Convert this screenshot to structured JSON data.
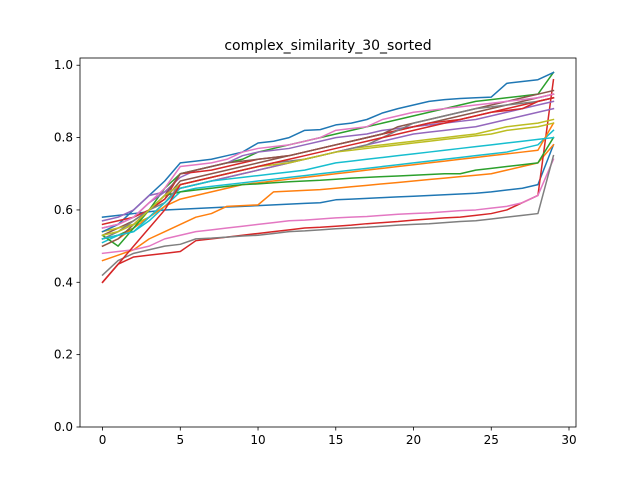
{
  "chart_data": {
    "type": "line",
    "title": "complex_similarity_30_sorted",
    "xlabel": "",
    "ylabel": "",
    "xlim": [
      -1.45,
      30.45
    ],
    "ylim": [
      0.0,
      1.02
    ],
    "x_ticks": [
      0,
      5,
      10,
      15,
      20,
      25,
      30
    ],
    "y_ticks": [
      0.0,
      0.2,
      0.4,
      0.6,
      0.8,
      1.0
    ],
    "x_tick_labels": [
      "0",
      "5",
      "10",
      "15",
      "20",
      "25",
      "30"
    ],
    "y_tick_labels": [
      "0.0",
      "0.2",
      "0.4",
      "0.6",
      "0.8",
      "1.0"
    ],
    "grid": false,
    "legend": "none",
    "x": [
      0,
      1,
      2,
      3,
      4,
      5,
      6,
      7,
      8,
      9,
      10,
      11,
      12,
      13,
      14,
      15,
      16,
      17,
      18,
      19,
      20,
      21,
      22,
      23,
      24,
      25,
      26,
      27,
      28,
      29
    ],
    "series": [
      {
        "color": "#1f77b4",
        "values": [
          0.58,
          0.585,
          0.59,
          0.595,
          0.6,
          0.602,
          0.604,
          0.606,
          0.608,
          0.61,
          0.612,
          0.614,
          0.616,
          0.618,
          0.62,
          0.628,
          0.63,
          0.632,
          0.634,
          0.636,
          0.638,
          0.64,
          0.642,
          0.644,
          0.646,
          0.65,
          0.655,
          0.66,
          0.67,
          0.78
        ]
      },
      {
        "color": "#ff7f0e",
        "values": [
          0.46,
          0.475,
          0.49,
          0.52,
          0.54,
          0.56,
          0.58,
          0.59,
          0.61,
          0.612,
          0.614,
          0.65,
          0.652,
          0.654,
          0.656,
          0.66,
          0.664,
          0.668,
          0.672,
          0.676,
          0.68,
          0.684,
          0.688,
          0.692,
          0.696,
          0.7,
          0.71,
          0.72,
          0.73,
          0.78
        ]
      },
      {
        "color": "#2ca02c",
        "values": [
          0.52,
          0.53,
          0.55,
          0.6,
          0.66,
          0.7,
          0.71,
          0.72,
          0.73,
          0.74,
          0.76,
          0.77,
          0.78,
          0.79,
          0.8,
          0.81,
          0.82,
          0.83,
          0.84,
          0.85,
          0.86,
          0.87,
          0.88,
          0.89,
          0.9,
          0.905,
          0.91,
          0.915,
          0.92,
          0.98
        ]
      },
      {
        "color": "#d62728",
        "values": [
          0.4,
          0.45,
          0.47,
          0.475,
          0.48,
          0.485,
          0.515,
          0.52,
          0.525,
          0.53,
          0.535,
          0.54,
          0.545,
          0.55,
          0.552,
          0.555,
          0.558,
          0.562,
          0.565,
          0.568,
          0.572,
          0.575,
          0.578,
          0.58,
          0.585,
          0.59,
          0.6,
          0.62,
          0.64,
          0.96
        ]
      },
      {
        "color": "#9467bd",
        "values": [
          0.55,
          0.56,
          0.58,
          0.62,
          0.65,
          0.69,
          0.71,
          0.72,
          0.73,
          0.75,
          0.76,
          0.765,
          0.77,
          0.78,
          0.79,
          0.8,
          0.805,
          0.81,
          0.82,
          0.825,
          0.83,
          0.835,
          0.84,
          0.845,
          0.85,
          0.86,
          0.87,
          0.88,
          0.89,
          0.9
        ]
      },
      {
        "color": "#8c564b",
        "values": [
          0.53,
          0.55,
          0.57,
          0.6,
          0.63,
          0.68,
          0.69,
          0.7,
          0.71,
          0.72,
          0.73,
          0.74,
          0.75,
          0.76,
          0.77,
          0.78,
          0.79,
          0.8,
          0.81,
          0.82,
          0.83,
          0.84,
          0.85,
          0.86,
          0.87,
          0.88,
          0.89,
          0.9,
          0.91,
          0.92
        ]
      },
      {
        "color": "#e377c2",
        "values": [
          0.48,
          0.485,
          0.49,
          0.5,
          0.52,
          0.53,
          0.54,
          0.545,
          0.55,
          0.555,
          0.56,
          0.565,
          0.57,
          0.572,
          0.575,
          0.578,
          0.58,
          0.582,
          0.585,
          0.588,
          0.59,
          0.592,
          0.595,
          0.598,
          0.6,
          0.605,
          0.61,
          0.62,
          0.64,
          0.74
        ]
      },
      {
        "color": "#7f7f7f",
        "values": [
          0.42,
          0.46,
          0.48,
          0.49,
          0.5,
          0.505,
          0.52,
          0.522,
          0.525,
          0.528,
          0.53,
          0.535,
          0.54,
          0.542,
          0.545,
          0.548,
          0.55,
          0.552,
          0.555,
          0.558,
          0.56,
          0.562,
          0.565,
          0.568,
          0.57,
          0.575,
          0.58,
          0.585,
          0.59,
          0.75
        ]
      },
      {
        "color": "#bcbd22",
        "values": [
          0.54,
          0.55,
          0.56,
          0.58,
          0.62,
          0.66,
          0.67,
          0.68,
          0.69,
          0.7,
          0.71,
          0.72,
          0.73,
          0.74,
          0.75,
          0.76,
          0.77,
          0.775,
          0.78,
          0.785,
          0.79,
          0.795,
          0.8,
          0.805,
          0.81,
          0.82,
          0.83,
          0.835,
          0.84,
          0.85
        ]
      },
      {
        "color": "#17becf",
        "values": [
          0.51,
          0.53,
          0.54,
          0.57,
          0.61,
          0.65,
          0.66,
          0.665,
          0.67,
          0.675,
          0.68,
          0.685,
          0.69,
          0.695,
          0.7,
          0.705,
          0.71,
          0.715,
          0.72,
          0.725,
          0.73,
          0.735,
          0.74,
          0.745,
          0.75,
          0.755,
          0.76,
          0.77,
          0.78,
          0.82
        ]
      },
      {
        "color": "#1f77b4",
        "values": [
          0.54,
          0.56,
          0.6,
          0.64,
          0.68,
          0.73,
          0.735,
          0.74,
          0.75,
          0.76,
          0.785,
          0.79,
          0.8,
          0.82,
          0.822,
          0.835,
          0.84,
          0.85,
          0.868,
          0.88,
          0.89,
          0.9,
          0.905,
          0.908,
          0.91,
          0.912,
          0.95,
          0.955,
          0.96,
          0.98
        ]
      },
      {
        "color": "#ff7f0e",
        "values": [
          0.5,
          0.52,
          0.55,
          0.58,
          0.61,
          0.63,
          0.64,
          0.65,
          0.66,
          0.67,
          0.675,
          0.68,
          0.685,
          0.69,
          0.695,
          0.7,
          0.705,
          0.71,
          0.715,
          0.72,
          0.725,
          0.73,
          0.735,
          0.74,
          0.745,
          0.75,
          0.755,
          0.76,
          0.765,
          0.84
        ]
      },
      {
        "color": "#2ca02c",
        "values": [
          0.53,
          0.5,
          0.55,
          0.6,
          0.64,
          0.65,
          0.655,
          0.66,
          0.665,
          0.67,
          0.672,
          0.675,
          0.678,
          0.68,
          0.682,
          0.685,
          0.688,
          0.69,
          0.692,
          0.694,
          0.696,
          0.698,
          0.7,
          0.7,
          0.71,
          0.715,
          0.72,
          0.725,
          0.73,
          0.8
        ]
      },
      {
        "color": "#d62728",
        "values": [
          0.56,
          0.57,
          0.58,
          0.6,
          0.63,
          0.7,
          0.705,
          0.71,
          0.72,
          0.73,
          0.74,
          0.745,
          0.75,
          0.76,
          0.77,
          0.78,
          0.79,
          0.8,
          0.81,
          0.82,
          0.83,
          0.84,
          0.845,
          0.85,
          0.86,
          0.87,
          0.88,
          0.89,
          0.9,
          0.91
        ]
      },
      {
        "color": "#9467bd",
        "values": [
          0.57,
          0.58,
          0.6,
          0.64,
          0.65,
          0.66,
          0.67,
          0.68,
          0.69,
          0.7,
          0.71,
          0.72,
          0.73,
          0.74,
          0.75,
          0.76,
          0.77,
          0.78,
          0.79,
          0.8,
          0.81,
          0.815,
          0.82,
          0.825,
          0.83,
          0.84,
          0.85,
          0.86,
          0.87,
          0.88
        ]
      },
      {
        "color": "#8c564b",
        "values": [
          0.5,
          0.52,
          0.56,
          0.6,
          0.64,
          0.7,
          0.71,
          0.72,
          0.73,
          0.735,
          0.74,
          0.745,
          0.75,
          0.76,
          0.77,
          0.78,
          0.79,
          0.8,
          0.81,
          0.83,
          0.84,
          0.85,
          0.86,
          0.87,
          0.88,
          0.89,
          0.9,
          0.91,
          0.92,
          0.93
        ]
      },
      {
        "color": "#e377c2",
        "values": [
          0.55,
          0.56,
          0.58,
          0.62,
          0.66,
          0.72,
          0.725,
          0.73,
          0.74,
          0.76,
          0.77,
          0.775,
          0.78,
          0.79,
          0.8,
          0.82,
          0.825,
          0.83,
          0.85,
          0.86,
          0.87,
          0.875,
          0.88,
          0.885,
          0.89,
          0.895,
          0.9,
          0.905,
          0.91,
          0.92
        ]
      },
      {
        "color": "#7f7f7f",
        "values": [
          0.52,
          0.54,
          0.57,
          0.6,
          0.62,
          0.67,
          0.68,
          0.69,
          0.7,
          0.71,
          0.72,
          0.73,
          0.735,
          0.74,
          0.75,
          0.76,
          0.77,
          0.78,
          0.8,
          0.82,
          0.84,
          0.85,
          0.86,
          0.87,
          0.88,
          0.885,
          0.89,
          0.895,
          0.9,
          0.91
        ]
      },
      {
        "color": "#bcbd22",
        "values": [
          0.53,
          0.54,
          0.56,
          0.6,
          0.64,
          0.67,
          0.68,
          0.69,
          0.7,
          0.71,
          0.72,
          0.725,
          0.73,
          0.74,
          0.75,
          0.76,
          0.765,
          0.77,
          0.775,
          0.78,
          0.785,
          0.79,
          0.795,
          0.8,
          0.805,
          0.81,
          0.82,
          0.825,
          0.83,
          0.84
        ]
      },
      {
        "color": "#17becf",
        "values": [
          0.52,
          0.53,
          0.54,
          0.58,
          0.62,
          0.66,
          0.67,
          0.68,
          0.685,
          0.69,
          0.695,
          0.7,
          0.705,
          0.71,
          0.72,
          0.73,
          0.735,
          0.74,
          0.745,
          0.75,
          0.755,
          0.76,
          0.765,
          0.77,
          0.775,
          0.78,
          0.785,
          0.79,
          0.795,
          0.8
        ]
      },
      {
        "color": "#d62728",
        "values": [
          0.4,
          0.45,
          0.5,
          0.55,
          0.6,
          0.67,
          0.68,
          0.69,
          0.7,
          0.71,
          0.72,
          0.73,
          0.74,
          0.75,
          0.76,
          0.77,
          0.78,
          0.79,
          0.8,
          0.81,
          0.82,
          0.83,
          0.84,
          0.85,
          0.86,
          0.87,
          0.875,
          0.88,
          0.9,
          0.91
        ]
      }
    ]
  }
}
